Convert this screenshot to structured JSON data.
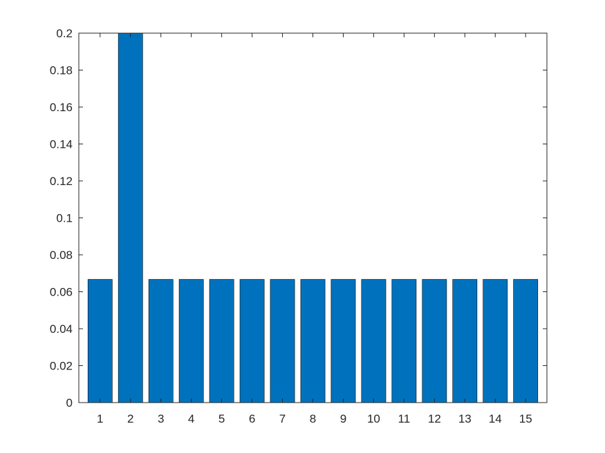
{
  "chart_data": {
    "type": "bar",
    "categories": [
      "1",
      "2",
      "3",
      "4",
      "5",
      "6",
      "7",
      "8",
      "9",
      "10",
      "11",
      "12",
      "13",
      "14",
      "15"
    ],
    "values": [
      0.0667,
      0.2,
      0.0667,
      0.0667,
      0.0667,
      0.0667,
      0.0667,
      0.0667,
      0.0667,
      0.0667,
      0.0667,
      0.0667,
      0.0667,
      0.0667,
      0.0667
    ],
    "title": "",
    "xlabel": "",
    "ylabel": "",
    "ylim": [
      0,
      0.2
    ],
    "yticks": [
      "0",
      "0.02",
      "0.04",
      "0.06",
      "0.08",
      "0.1",
      "0.12",
      "0.14",
      "0.16",
      "0.18",
      "0.2"
    ],
    "grid": false,
    "colors": {
      "bar": "#0072BD",
      "bar_edge": "#000000",
      "axis": "#262626"
    }
  }
}
